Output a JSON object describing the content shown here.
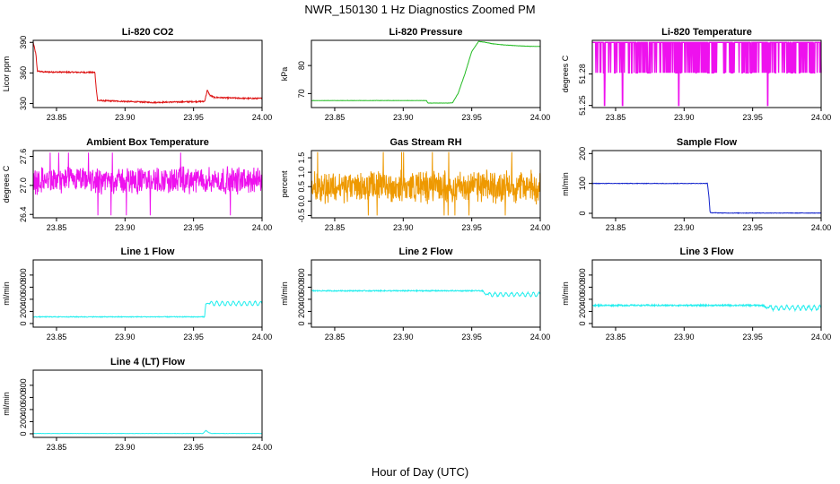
{
  "figure": {
    "title": "NWR_150130  1 Hz Diagnostics Zoomed PM",
    "xlabel": "Hour of Day (UTC)"
  },
  "chart_data": [
    {
      "type": "line",
      "title": "Li-820 CO2",
      "ylabel": "Licor ppm",
      "color": "#dd1111",
      "xlim": [
        23.833,
        24.0
      ],
      "ylim": [
        326,
        392
      ],
      "xticks": [
        23.85,
        23.9,
        23.95,
        24.0
      ],
      "xticklabels": [
        "23.85",
        "23.90",
        "23.95",
        "24.00"
      ],
      "yticks": [
        330,
        360,
        390
      ],
      "yticklabels": [
        "330",
        "360",
        "390"
      ],
      "series": [
        {
          "name": "CO2",
          "noise": 0.6,
          "x": [
            23.833,
            23.835,
            23.836,
            23.84,
            23.878,
            23.879,
            23.88,
            23.9,
            23.92,
            23.958,
            23.959,
            23.96,
            23.962,
            23.965,
            23.975,
            23.99,
            24.0
          ],
          "y": [
            390,
            378,
            362,
            361,
            360.5,
            345,
            333,
            332,
            331,
            332,
            337,
            343,
            338,
            336,
            335.5,
            335,
            335
          ]
        }
      ]
    },
    {
      "type": "line",
      "title": "Li-820 Pressure",
      "ylabel": "kPa",
      "color": "#22bb22",
      "xlim": [
        23.833,
        24.0
      ],
      "ylim": [
        65,
        89
      ],
      "xticks": [
        23.85,
        23.9,
        23.95,
        24.0
      ],
      "xticklabels": [
        "23.85",
        "23.90",
        "23.95",
        "24.00"
      ],
      "yticks": [
        70,
        80
      ],
      "yticklabels": [
        "70",
        "80"
      ],
      "series": [
        {
          "name": "Pressure",
          "noise": 0.05,
          "x": [
            23.833,
            23.917,
            23.918,
            23.926,
            23.9255,
            23.934,
            23.936,
            23.94,
            23.945,
            23.95,
            23.955,
            23.96,
            23.965,
            23.975,
            23.99,
            24.0
          ],
          "y": [
            67.5,
            67.5,
            66.6,
            66.6,
            66.6,
            66.6,
            66.7,
            70,
            77,
            85,
            88.6,
            88.3,
            87.8,
            87.3,
            86.9,
            86.8
          ]
        }
      ]
    },
    {
      "type": "line",
      "title": "Li-820 Temperature",
      "ylabel": "degrees C",
      "color": "#ee11ee",
      "xlim": [
        23.833,
        24.0
      ],
      "ylim": [
        51.248,
        51.312
      ],
      "xticks": [
        23.85,
        23.9,
        23.95,
        24.0
      ],
      "xticklabels": [
        "23.85",
        "23.90",
        "23.95",
        "24.00"
      ],
      "yticks": [
        51.25,
        51.28
      ],
      "yticklabels": [
        "51.25",
        "51.28"
      ],
      "series": [
        {
          "name": "Temperature",
          "base": 51.281,
          "high": 51.31,
          "low": 51.25,
          "low_points": [
            23.842,
            23.855,
            23.896,
            23.961
          ]
        }
      ]
    },
    {
      "type": "line",
      "title": "Ambient Box Temperature",
      "ylabel": "degrees C",
      "color": "#ee11ee",
      "xlim": [
        23.833,
        24.0
      ],
      "ylim": [
        26.33,
        27.72
      ],
      "xticks": [
        23.85,
        23.9,
        23.95,
        24.0
      ],
      "xticklabels": [
        "23.85",
        "23.90",
        "23.95",
        "24.00"
      ],
      "yticks": [
        26.4,
        27.0,
        27.6
      ],
      "yticklabels": [
        "26.4",
        "27.0",
        "27.6"
      ],
      "series": [
        {
          "name": "Box temperature",
          "mean": 27.1,
          "spread": 0.45,
          "min": 26.38,
          "max": 27.68
        }
      ]
    },
    {
      "type": "line",
      "title": "Gas Stream RH",
      "ylabel": "percent",
      "color": "#ee9900",
      "xlim": [
        23.833,
        24.0
      ],
      "ylim": [
        -0.58,
        1.75
      ],
      "xticks": [
        23.85,
        23.9,
        23.95,
        24.0
      ],
      "xticklabels": [
        "23.85",
        "23.90",
        "23.95",
        "24.00"
      ],
      "yticks": [
        -0.5,
        0.0,
        0.5,
        1.0,
        1.5
      ],
      "yticklabels": [
        "-0.5",
        "0.0",
        "0.5",
        "1.0",
        "1.5"
      ],
      "series": [
        {
          "name": "RH",
          "mean": 0.5,
          "spread": 0.9,
          "min": -0.5,
          "max": 1.7
        }
      ]
    },
    {
      "type": "line",
      "title": "Sample Flow",
      "ylabel": "ml/min",
      "color": "#1122cc",
      "xlim": [
        23.833,
        24.0
      ],
      "ylim": [
        -15,
        210
      ],
      "xticks": [
        23.85,
        23.9,
        23.95,
        24.0
      ],
      "xticklabels": [
        "23.85",
        "23.90",
        "23.95",
        "24.00"
      ],
      "yticks": [
        0,
        100,
        200
      ],
      "yticklabels": [
        "0",
        "100",
        "200"
      ],
      "series": [
        {
          "name": "Sample flow",
          "noise": 0.8,
          "x": [
            23.833,
            23.917,
            23.918,
            23.919,
            23.93,
            24.0
          ],
          "y": [
            100,
            100,
            60,
            2,
            1,
            1
          ]
        }
      ]
    },
    {
      "type": "line",
      "title": "Line 1 Flow",
      "ylabel": "ml/min",
      "color": "#22eeee",
      "xlim": [
        23.833,
        24.0
      ],
      "ylim": [
        -60,
        1050
      ],
      "xticks": [
        23.85,
        23.9,
        23.95,
        24.0
      ],
      "xticklabels": [
        "23.85",
        "23.90",
        "23.95",
        "24.00"
      ],
      "yticks": [
        0,
        200,
        400,
        600,
        800
      ],
      "yticklabels": [
        "0",
        "200",
        "400",
        "600",
        "800"
      ],
      "series": [
        {
          "name": "Line 1",
          "noise": 6,
          "x": [
            23.833,
            23.958,
            23.959,
            24.0
          ],
          "y": [
            110,
            110,
            330,
            330
          ],
          "wave": {
            "from": 23.962,
            "amp": 35,
            "period": 0.004
          }
        }
      ]
    },
    {
      "type": "line",
      "title": "Line 2 Flow",
      "ylabel": "ml/min",
      "color": "#22eeee",
      "xlim": [
        23.833,
        24.0
      ],
      "ylim": [
        -60,
        1050
      ],
      "xticks": [
        23.85,
        23.9,
        23.95,
        24.0
      ],
      "xticklabels": [
        "23.85",
        "23.90",
        "23.95",
        "24.00"
      ],
      "yticks": [
        0,
        200,
        400,
        600,
        800
      ],
      "yticklabels": [
        "0",
        "200",
        "400",
        "600",
        "800"
      ],
      "series": [
        {
          "name": "Line 2",
          "noise": 8,
          "x": [
            23.833,
            23.958,
            23.96,
            24.0
          ],
          "y": [
            540,
            540,
            480,
            480
          ],
          "wave": {
            "from": 23.962,
            "amp": 30,
            "period": 0.004
          }
        }
      ]
    },
    {
      "type": "line",
      "title": "Line 3 Flow",
      "ylabel": "ml/min",
      "color": "#22eeee",
      "xlim": [
        23.833,
        24.0
      ],
      "ylim": [
        -60,
        1050
      ],
      "xticks": [
        23.85,
        23.9,
        23.95,
        24.0
      ],
      "xticklabels": [
        "23.85",
        "23.90",
        "23.95",
        "24.00"
      ],
      "yticks": [
        0,
        200,
        400,
        600,
        800
      ],
      "yticklabels": [
        "0",
        "200",
        "400",
        "600",
        "800"
      ],
      "series": [
        {
          "name": "Line 3",
          "noise": 12,
          "x": [
            23.833,
            23.958,
            23.96,
            24.0
          ],
          "y": [
            300,
            300,
            260,
            260
          ],
          "wave": {
            "from": 23.962,
            "amp": 35,
            "period": 0.004
          }
        }
      ]
    },
    {
      "type": "line",
      "title": "Line 4 (LT) Flow",
      "ylabel": "ml/min",
      "color": "#22eeee",
      "xlim": [
        23.833,
        24.0
      ],
      "ylim": [
        -60,
        1050
      ],
      "xticks": [
        23.85,
        23.9,
        23.95,
        24.0
      ],
      "xticklabels": [
        "23.85",
        "23.90",
        "23.95",
        "24.00"
      ],
      "yticks": [
        0,
        200,
        400,
        600,
        800
      ],
      "yticklabels": [
        "0",
        "200",
        "400",
        "600",
        "800"
      ],
      "series": [
        {
          "name": "Line 4",
          "noise": 2,
          "x": [
            23.833,
            23.957,
            23.959,
            23.961,
            23.963,
            24.0
          ],
          "y": [
            5,
            5,
            55,
            20,
            5,
            5
          ]
        }
      ]
    }
  ]
}
